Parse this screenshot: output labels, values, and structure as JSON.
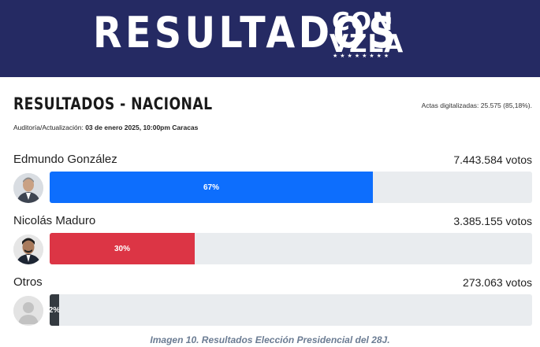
{
  "banner": {
    "title": "RESULTADOS",
    "logo_line1": "CON",
    "logo_line2": "VZLA",
    "logo_stars": "★★★★★★★★"
  },
  "section": {
    "title": "RESULTADOS - NACIONAL",
    "actas": "Actas digitalizadas: 25.575 (85,18%).",
    "audit_label": "Auditoría/Actualización:",
    "audit_value": "03 de enero 2025, 10:00pm Caracas"
  },
  "candidates": [
    {
      "name": "Edmundo González",
      "votes": "7.443.584 votos",
      "percent_label": "67%",
      "share": 0.67,
      "color": "#0d6efd"
    },
    {
      "name": "Nicolás Maduro",
      "votes": "3.385.155 votos",
      "percent_label": "30%",
      "share": 0.3,
      "color": "#dc3545"
    },
    {
      "name": "Otros",
      "votes": "273.063 votos",
      "percent_label": "2%",
      "share": 0.02,
      "color": "#343a40"
    }
  ],
  "caption": "Imagen 10. Resultados Elección Presidencial del 28J.",
  "colors": {
    "banner": "#252a63",
    "track": "#e9ecef"
  }
}
